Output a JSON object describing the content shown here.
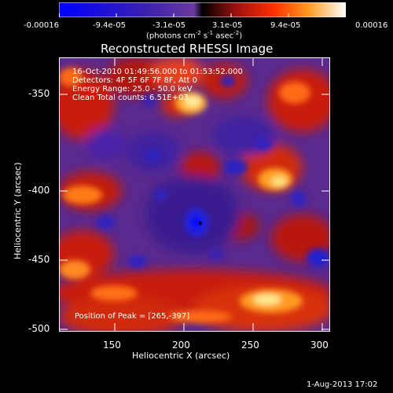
{
  "colorbar": {
    "tick_labels": [
      "-0.00016",
      "-9.4e-05",
      "-3.1e-05",
      "3.1e-05",
      "9.4e-05",
      "0.00016"
    ],
    "units_prefix": "(photons cm",
    "units_e1": "-2",
    "units_mid": " s",
    "units_e2": "-1",
    "units_mid2": " asec",
    "units_e3": "-2",
    "units_suffix": ")"
  },
  "plot": {
    "title": "Reconstructed RHESSI Image",
    "info_lines": [
      "16-Oct-2010 01:49:56.000 to 01:53:52.000",
      "Detectors: 4F 5F 6F 7F 8F, Att 0",
      "Energy Range: 25.0 - 50.0 keV",
      "Clean    Total counts: 6.51E+03"
    ],
    "peak_label": "Position of Peak = [265,-397]",
    "xlabel": "Heliocentric X (arcsec)",
    "ylabel": "Heliocentric Y (arcsec)",
    "x_ticks": [
      "150",
      "200",
      "250",
      "300"
    ],
    "y_ticks": [
      "-350",
      "-400",
      "-450",
      "-500"
    ]
  },
  "footer": {
    "date": "1-Aug-2013 17:02"
  }
}
